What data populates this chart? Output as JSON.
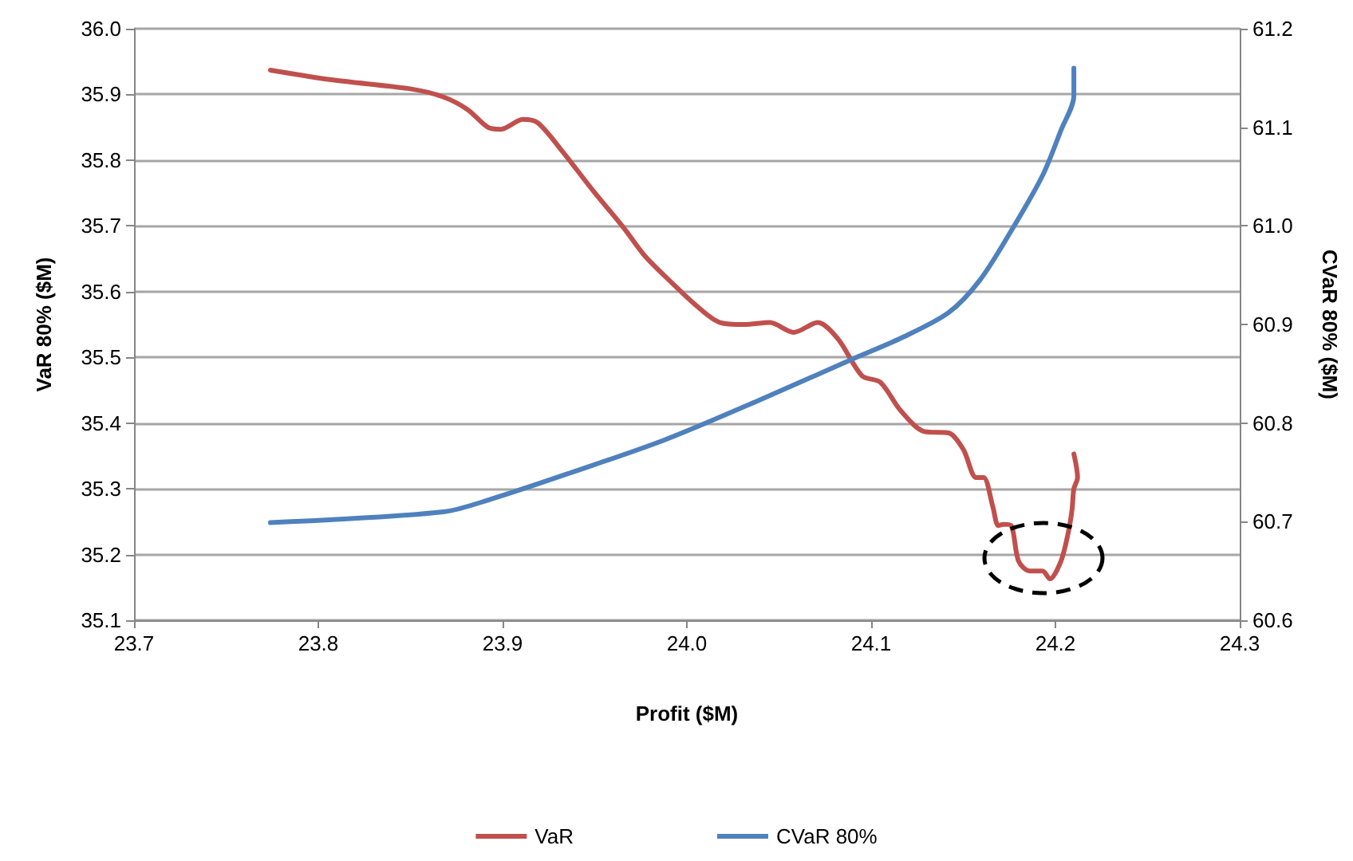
{
  "chart_data": {
    "type": "line",
    "xlabel": "Profit ($M)",
    "ylabel": "VaR 80% ($M)",
    "y2label": "CVaR 80% ($M)",
    "xlim": [
      23.7,
      24.3
    ],
    "xticks": [
      {
        "value": 23.7,
        "label": "23.7"
      },
      {
        "value": 23.8,
        "label": "23.8"
      },
      {
        "value": 23.9,
        "label": "23.9"
      },
      {
        "value": 24.0,
        "label": "24.0"
      },
      {
        "value": 24.1,
        "label": "24.1"
      },
      {
        "value": 24.2,
        "label": "24.2"
      },
      {
        "value": 24.3,
        "label": "24.3"
      }
    ],
    "ylim": [
      35.1,
      36.0
    ],
    "yticks": [
      35.1,
      35.2,
      35.3,
      35.4,
      35.5,
      35.6,
      35.7,
      35.8,
      35.9,
      {
        "value": 36.0,
        "label": "36.0"
      }
    ],
    "y2lim": [
      60.6,
      61.2
    ],
    "y2ticks": [
      60.6,
      60.7,
      60.8,
      60.9,
      {
        "value": 61.0,
        "label": "61.0"
      },
      61.1,
      61.2
    ],
    "grid": "y",
    "legend": "bottom",
    "marker": "none",
    "line_style": "solid",
    "series": [
      {
        "name": "VaR",
        "color": "#c0504d",
        "x": [
          23.774,
          23.808,
          23.851,
          23.868,
          23.881,
          23.892,
          23.899,
          23.911,
          23.919,
          23.932,
          23.949,
          23.966,
          23.977,
          23.992,
          24.005,
          24.018,
          24.031,
          24.045,
          24.058,
          24.071,
          24.082,
          24.095,
          24.105,
          24.116,
          24.129,
          24.142,
          24.15,
          24.157,
          24.161,
          24.166,
          24.169,
          24.172,
          24.176,
          24.18,
          24.186,
          24.193,
          24.197,
          24.203,
          24.207,
          24.209,
          24.21,
          24.212,
          24.21
        ],
        "values": [
          35.937,
          35.922,
          35.908,
          35.896,
          35.877,
          35.85,
          35.847,
          35.862,
          35.857,
          35.815,
          35.754,
          35.696,
          35.655,
          35.613,
          35.579,
          35.553,
          35.55,
          35.553,
          35.538,
          35.553,
          35.528,
          35.472,
          35.462,
          35.419,
          35.387,
          35.385,
          35.36,
          35.317,
          35.317,
          35.273,
          35.244,
          35.246,
          35.244,
          35.19,
          35.175,
          35.175,
          35.163,
          35.19,
          35.234,
          35.268,
          35.3,
          35.317,
          35.353
        ]
      },
      {
        "name": "CVaR 80%",
        "color": "#4f81bd",
        "axis": "y2",
        "x": [
          23.774,
          23.868,
          23.894,
          23.936,
          23.988,
          24.039,
          24.09,
          24.116,
          24.142,
          24.159,
          24.176,
          24.193,
          24.203,
          24.21,
          24.21
        ],
        "values": [
          60.699,
          60.71,
          60.723,
          60.749,
          60.783,
          60.823,
          60.865,
          60.886,
          60.912,
          60.945,
          60.995,
          61.051,
          61.097,
          61.132,
          61.16
        ]
      }
    ]
  }
}
